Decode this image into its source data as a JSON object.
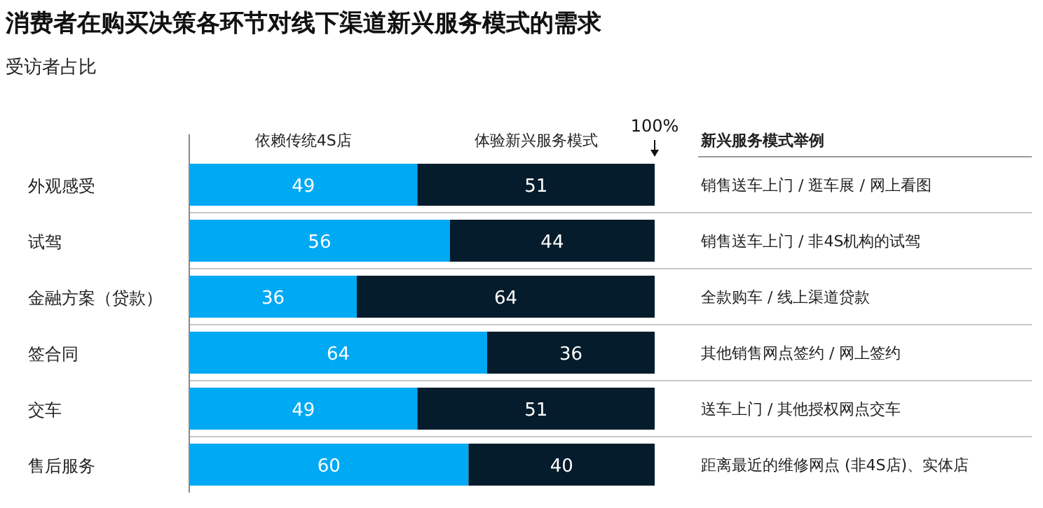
{
  "chart_data": {
    "type": "bar",
    "orientation": "horizontal",
    "stacked": true,
    "title": "消费者在购买决策各环节对线下渠道新兴服务模式的需求",
    "subtitle": "受访者占比",
    "categories": [
      "外观感受",
      "试驾",
      "金融方案（贷款）",
      "签合同",
      "交车",
      "售后服务"
    ],
    "series": [
      {
        "name": "依赖传统4S店",
        "color": "#00a9f4",
        "values": [
          49,
          56,
          36,
          64,
          49,
          60
        ]
      },
      {
        "name": "体验新兴服务模式",
        "color": "#051c2c",
        "values": [
          51,
          44,
          64,
          36,
          51,
          40
        ]
      }
    ],
    "xlim": [
      0,
      100
    ],
    "xticks": [
      {
        "value": 100,
        "label": "100%"
      }
    ],
    "tick_labels": "x",
    "data_labels": true,
    "legend": "top",
    "annotations": [
      "新兴服务模式举例",
      "销售送车上门 / 逛车展 / 网上看图",
      "销售送车上门 / 非4S机构的试驾",
      "全款购车 / 线上渠道贷款",
      "其他销售网点签约 / 网上签约",
      "送车上门 / 其他授权网点交车",
      "距离最近的维修网点 (非4S店)、实体店"
    ]
  }
}
